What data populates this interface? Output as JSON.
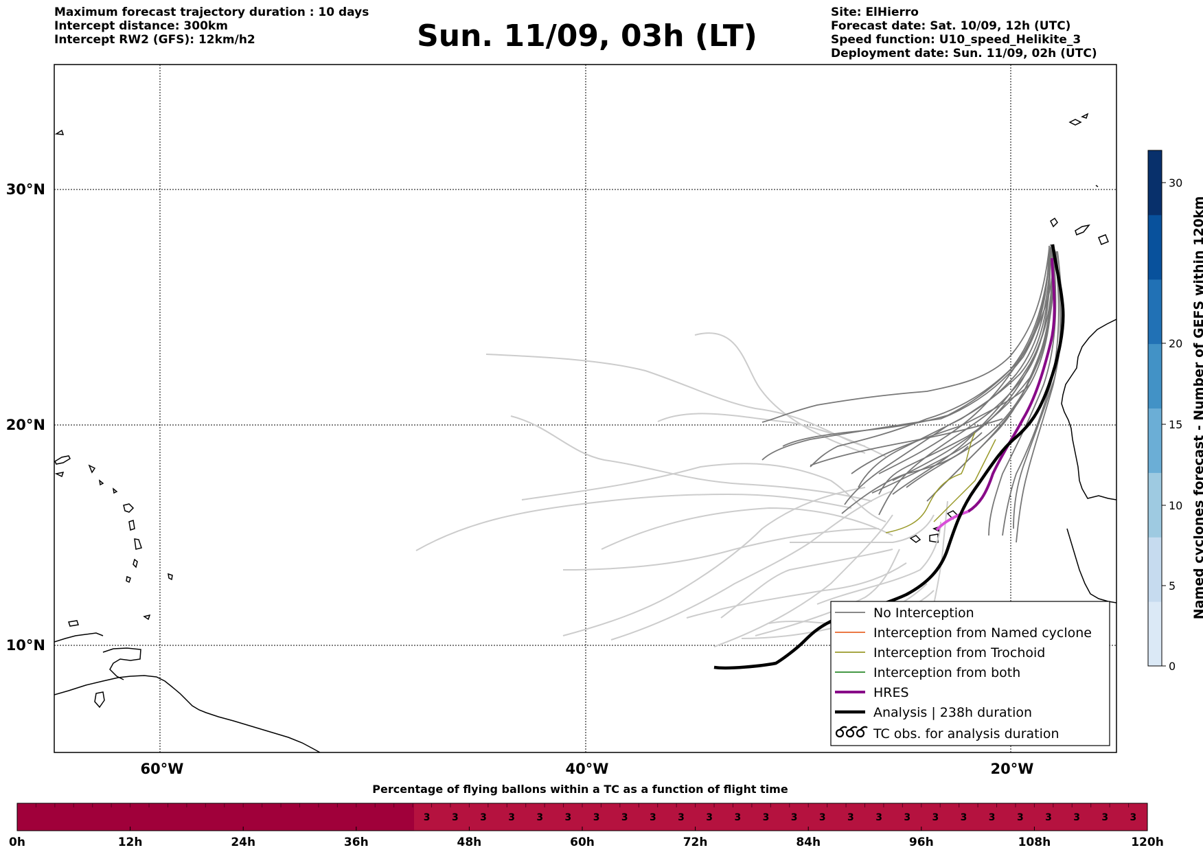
{
  "header": {
    "left_lines": [
      "Maximum forecast trajectory duration : 10 days",
      "Intercept distance: 300km",
      "Intercept RW2 (GFS):  12km/h2"
    ],
    "title": "Sun. 11/09, 03h (LT)",
    "right_lines": [
      "Site: ElHierro",
      "Forecast date: Sat. 10/09, 12h (UTC)",
      "Speed function: U10_speed_Helikite_3",
      "Deployment date: Sun. 11/09, 02h (UTC)"
    ]
  },
  "map": {
    "lat_labels": [
      "30°N",
      "20°N",
      "10°N"
    ],
    "lon_labels": [
      "60°W",
      "40°W",
      "20°W"
    ],
    "legend": {
      "entries": [
        {
          "label": "No Interception",
          "color": "#777777"
        },
        {
          "label": "Interception from Named cyclone",
          "color": "#e8642a"
        },
        {
          "label": "Interception from Trochoid",
          "color": "#9a9a2a"
        },
        {
          "label": "Interception from both",
          "color": "#2a8a2a"
        },
        {
          "label": "HRES",
          "color": "#880a88"
        },
        {
          "label": "Analysis | 238h duration",
          "color": "#000000"
        },
        {
          "label": "TC obs. for analysis duration",
          "color": "#000000",
          "icon": "tc-symbol-icon"
        }
      ]
    }
  },
  "colorbar": {
    "label": "Named cyclones forecast - Number of GEFS within 120km",
    "ticks": [
      "30",
      "20",
      "15",
      "10",
      "5",
      "0"
    ],
    "colors": [
      "#dbe9f6",
      "#c6dbef",
      "#9ecae1",
      "#6baed6",
      "#4292c6",
      "#2171b5",
      "#08519c",
      "#08306b"
    ]
  },
  "progress": {
    "title": "Percentage of flying ballons within a TC as a function of flight time",
    "tick_labels": [
      "0h",
      "12h",
      "24h",
      "36h",
      "48h",
      "60h",
      "72h",
      "84h",
      "96h",
      "108h",
      "120h"
    ],
    "segment_value": "3",
    "segment_count": 26,
    "dark_color": "#a0003a",
    "light_color": "#b5123f"
  }
}
